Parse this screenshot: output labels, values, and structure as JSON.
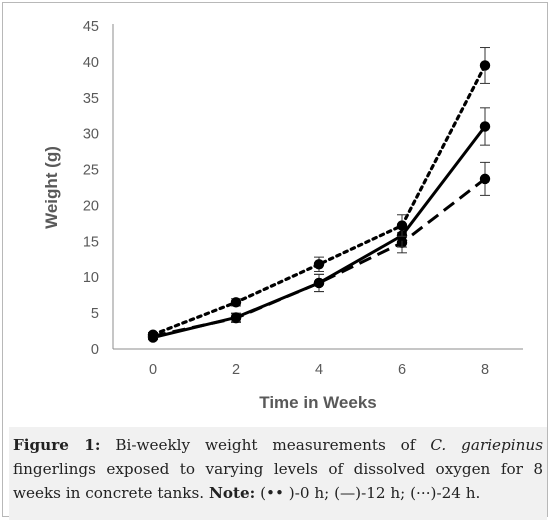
{
  "chart_data": {
    "type": "line",
    "xlabel": "Time in Weeks",
    "ylabel": "Weight (g)",
    "x": [
      0,
      2,
      4,
      6,
      8
    ],
    "ylim": [
      0,
      45
    ],
    "yticks": [
      0,
      5,
      10,
      15,
      20,
      25,
      30,
      35,
      40,
      45
    ],
    "xticks": [
      0,
      2,
      4,
      6,
      8
    ],
    "grid": false,
    "series": [
      {
        "key": "0h",
        "values": [
          1.8,
          4.3,
          9.2,
          14.8,
          23.7
        ],
        "errors": [
          0.3,
          0.6,
          1.2,
          1.4,
          2.3
        ],
        "style": "dashed"
      },
      {
        "key": "12h",
        "values": [
          1.6,
          4.4,
          9.2,
          15.8,
          31.0
        ],
        "errors": [
          0.3,
          0.6,
          1.2,
          1.6,
          2.6
        ],
        "style": "solid"
      },
      {
        "key": "24h",
        "values": [
          2.0,
          6.5,
          11.8,
          17.2,
          39.5
        ],
        "errors": [
          0.3,
          0.5,
          1.0,
          1.5,
          2.5
        ],
        "style": "dotted"
      }
    ]
  },
  "caption": {
    "figure_label": "Figure 1:",
    "text_part1": " Bi-weekly weight measurements of ",
    "species": "C. gariepinus",
    "text_part2": " fingerlings exposed to varying levels of dissolved oxygen for 8 weeks in concrete tanks. ",
    "note_label": "Note:",
    "legend_1_symbol": "(•• )",
    "legend_1_text": "-0 h; ",
    "legend_2_symbol": "(—)",
    "legend_2_text": "-12 h; ",
    "legend_3_symbol": "(···)",
    "legend_3_text": "-24 h."
  }
}
